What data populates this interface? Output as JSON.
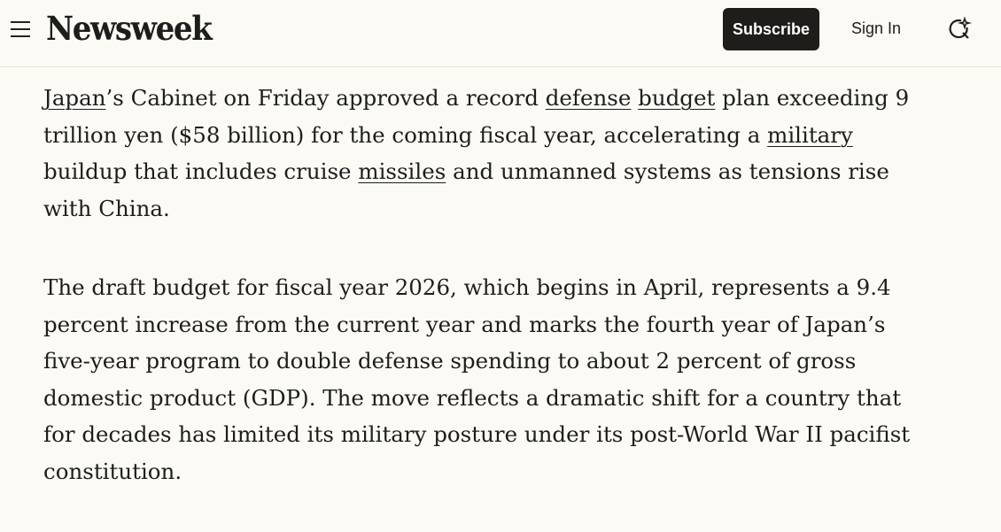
{
  "header": {
    "logo": "Newsweek",
    "subscribe_label": "Subscribe",
    "signin_label": "Sign In",
    "icons": {
      "menu": "hamburger-menu-icon",
      "search": "ai-search-sparkle-icon"
    }
  },
  "article": {
    "paragraphs": [
      [
        [
          {
            "t": "Japan",
            "link": true
          },
          {
            "t": "’s Cabinet on Friday approved a record "
          },
          {
            "t": "defense",
            "link": true
          },
          {
            "t": " "
          },
          {
            "t": "budget",
            "link": true
          },
          {
            "t": " plan exceeding 9"
          }
        ],
        [
          {
            "t": "trillion yen ($58 billion) for the coming fiscal year, accelerating a "
          },
          {
            "t": "military",
            "link": true
          }
        ],
        [
          {
            "t": "buildup that includes cruise "
          },
          {
            "t": "missiles",
            "link": true
          },
          {
            "t": " and unmanned systems as tensions rise"
          }
        ],
        [
          {
            "t": "with China."
          }
        ]
      ],
      [
        [
          {
            "t": "The draft budget for fiscal year 2026, which begins in April, represents a 9.4"
          }
        ],
        [
          {
            "t": "percent increase from the current year and marks the fourth year of Japan’s"
          }
        ],
        [
          {
            "t": "five-year program to double defense spending to about 2 percent of gross"
          }
        ],
        [
          {
            "t": "domestic product (GDP). The move reflects a dramatic shift for a country that"
          }
        ],
        [
          {
            "t": "for decades has limited its military posture under its post-World War II pacifist"
          }
        ],
        [
          {
            "t": "constitution."
          }
        ]
      ]
    ]
  }
}
